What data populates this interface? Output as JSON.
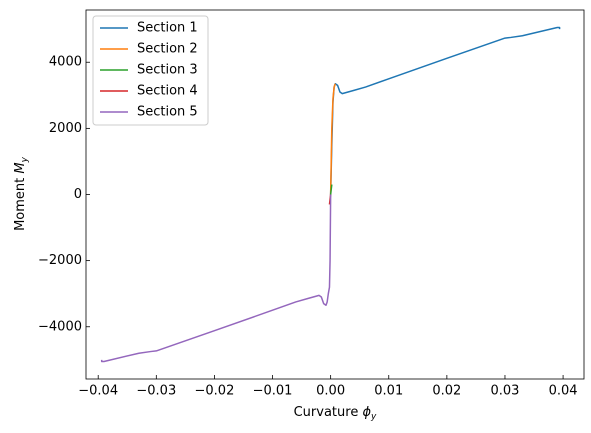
{
  "chart_data": {
    "type": "line",
    "x_label": {
      "text": "Curvature ",
      "symbol": "ϕ",
      "subscript": "y"
    },
    "y_label": {
      "text": "Moment ",
      "symbol": "M",
      "subscript": "y"
    },
    "xlim": [
      -0.0421,
      0.0436
    ],
    "ylim": [
      -5580,
      5580
    ],
    "xticks": [
      {
        "value": -0.04,
        "label": "−0.04"
      },
      {
        "value": -0.03,
        "label": "−0.03"
      },
      {
        "value": -0.02,
        "label": "−0.02"
      },
      {
        "value": -0.01,
        "label": "−0.01"
      },
      {
        "value": 0,
        "label": "0.00"
      },
      0.01,
      0.02,
      0.03,
      0.04
    ],
    "yticks": [
      {
        "value": -4000,
        "label": "−4000"
      },
      {
        "value": -2000,
        "label": "−2000"
      },
      0,
      2000,
      4000
    ],
    "legend": "upper left",
    "series": [
      {
        "name": "Section 1",
        "color": "#1f77b4",
        "x": [
          0,
          0.0002,
          0.0004,
          0.0006,
          0.0008,
          0.0012,
          0.0016,
          0.002,
          0.004,
          0.006,
          0.01,
          0.02,
          0.03,
          0.031,
          0.033,
          0.039,
          0.0394,
          0.0394
        ],
        "values": [
          0,
          1500,
          2800,
          3250,
          3350,
          3300,
          3100,
          3050,
          3150,
          3250,
          3500,
          4120,
          4730,
          4750,
          4800,
          5050,
          5050,
          5000
        ]
      },
      {
        "name": "Section 2",
        "color": "#ff7f0e",
        "x": [
          0,
          0.0001,
          0.0002,
          0.0004,
          0.0006,
          0.0008
        ],
        "values": [
          0,
          1000,
          2000,
          2900,
          3250,
          3350
        ]
      },
      {
        "name": "Section 3",
        "color": "#2ca02c",
        "x": [
          0,
          0.0001,
          0.0002
        ],
        "values": [
          0,
          150,
          300
        ]
      },
      {
        "name": "Section 4",
        "color": "#d62728",
        "x": [
          0,
          -0.0001,
          -0.0002
        ],
        "values": [
          0,
          -150,
          -300
        ]
      },
      {
        "name": "Section 5",
        "color": "#9467bd",
        "x": [
          0,
          -0.0001,
          -0.0002,
          -0.0004,
          -0.0006,
          -0.0008,
          -0.0012,
          -0.0016,
          -0.002,
          -0.004,
          -0.006,
          -0.01,
          -0.02,
          -0.03,
          -0.031,
          -0.033,
          -0.039,
          -0.0394,
          -0.0394
        ],
        "values": [
          0,
          -2000,
          -2800,
          -3000,
          -3250,
          -3350,
          -3300,
          -3100,
          -3050,
          -3150,
          -3250,
          -3500,
          -4120,
          -4730,
          -4750,
          -4800,
          -5050,
          -5050,
          -5000
        ]
      }
    ]
  }
}
